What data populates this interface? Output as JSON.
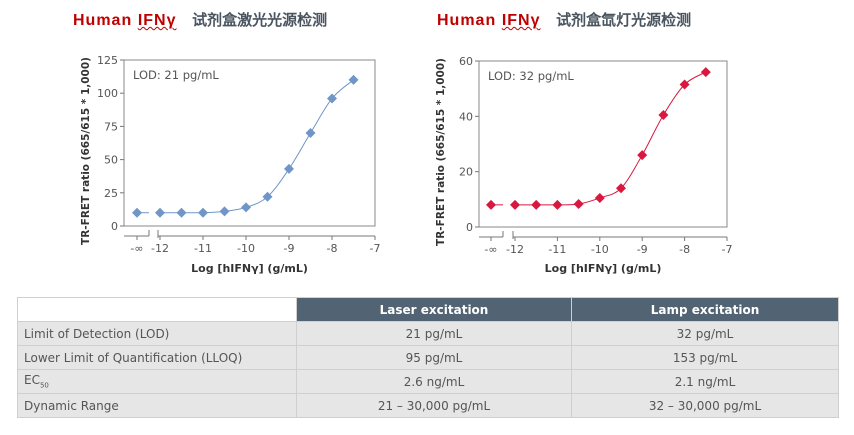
{
  "titles": [
    {
      "en_prefix": "Human",
      "en_ifn": "IFNγ",
      "cn": "试剂盒激光光源检测"
    },
    {
      "en_prefix": "Human",
      "en_ifn": "IFNγ",
      "cn": "试剂盒氙灯光源检测"
    }
  ],
  "chart_data": [
    {
      "type": "line",
      "ylabel": "TR-FRET ratio (665/615 * 1,000)",
      "xlabel": "Log [hIFNγ] (g/mL)",
      "annotation": "LOD: 21 pg/mL",
      "ylim": [
        0,
        125
      ],
      "yticks": [
        0,
        25,
        50,
        75,
        100,
        125
      ],
      "xtick_labels": [
        "-∞",
        "-12",
        "-11",
        "-10",
        "-9",
        "-8",
        "-7"
      ],
      "x": [
        "-∞",
        -12,
        -11.5,
        -11,
        -10.5,
        -10,
        -9.5,
        -9,
        -8.5,
        -8,
        -7.5
      ],
      "y": [
        10,
        10,
        10,
        10,
        11,
        14,
        22,
        43,
        70,
        96,
        110
      ],
      "color": "#7096c8",
      "marker": "diamond",
      "grid": false
    },
    {
      "type": "line",
      "ylabel": "TR-FRET ratio (665/615 * 1,000)",
      "xlabel": "Log [hIFNγ] (g/mL)",
      "annotation": "LOD: 32 pg/mL",
      "ylim": [
        0,
        60
      ],
      "yticks": [
        0,
        20,
        40,
        60
      ],
      "xtick_labels": [
        "-∞",
        "-12",
        "-11",
        "-10",
        "-9",
        "-8",
        "-7"
      ],
      "x": [
        "-∞",
        -12,
        -11.5,
        -11,
        -10.5,
        -10,
        -9.5,
        -9,
        -8.5,
        -8,
        -7.5
      ],
      "y": [
        8,
        8,
        8,
        8,
        8.3,
        10.5,
        14,
        26,
        40.5,
        51.5,
        56
      ],
      "color": "#d8183f",
      "marker": "diamond",
      "grid": false
    }
  ],
  "table": {
    "headers": [
      "",
      "Laser excitation",
      "Lamp excitation"
    ],
    "rows": [
      {
        "label": "Limit of Detection (LOD)",
        "laser": "21 pg/mL",
        "lamp": "32 pg/mL"
      },
      {
        "label": "Lower Limit of Quantification (LLOQ)",
        "laser": "95 pg/mL",
        "lamp": "153 pg/mL"
      },
      {
        "label": "EC",
        "label_sub": "50",
        "laser": "2.6 ng/mL",
        "lamp": "2.1 ng/mL"
      },
      {
        "label": "Dynamic Range",
        "laser": "21 – 30,000 pg/mL",
        "lamp": "32 – 30,000 pg/mL"
      }
    ]
  }
}
